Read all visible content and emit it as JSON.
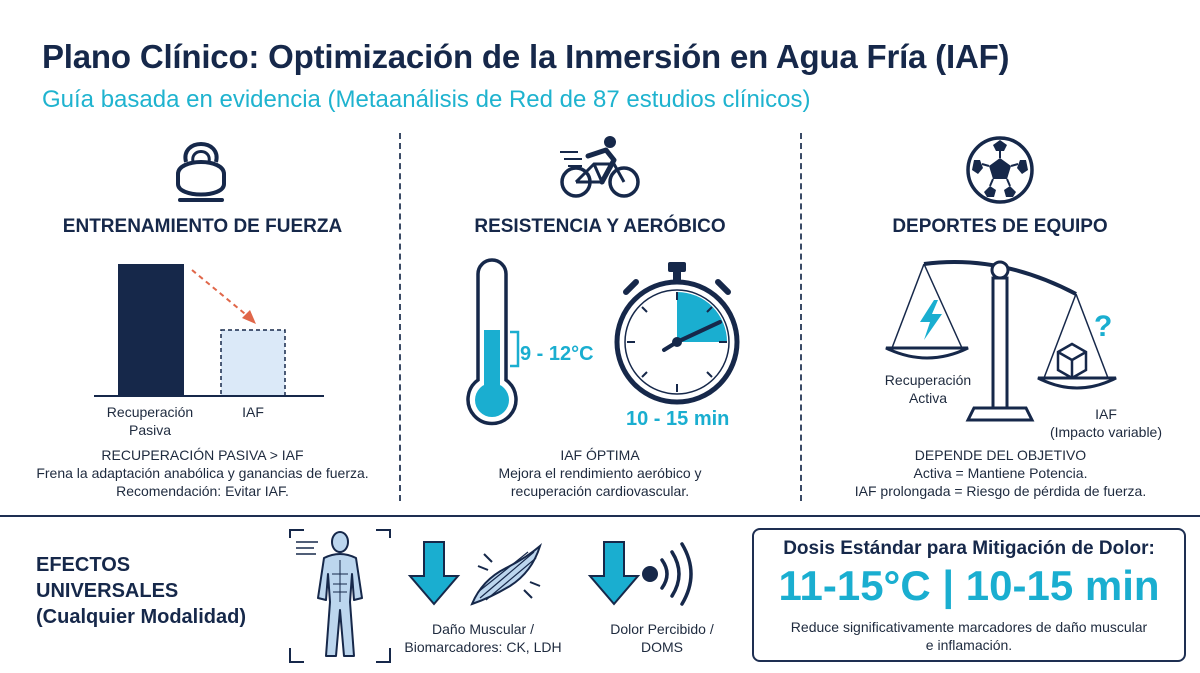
{
  "header": {
    "title": "Plano Clínico: Optimización de la Inmersión en Agua Fría (IAF)",
    "subtitle": "Guía basada en evidencia (Metaanálisis de Red de 87 estudios clínicos)"
  },
  "strength": {
    "icon": "kettlebell-icon",
    "heading": "ENTRENAMIENTO DE FUERZA",
    "bar_passive_label_1": "Recuperación",
    "bar_passive_label_2": "Pasiva",
    "bar_iaf_label": "IAF",
    "caption_1": "RECUPERACIÓN PASIVA > IAF",
    "caption_2": "Frena la adaptación anabólica y ganancias de fuerza.",
    "caption_3": "Recomendación: Evitar IAF."
  },
  "endurance": {
    "icon": "cyclist-icon",
    "heading": "RESISTENCIA Y AERÓBICO",
    "temp_label": "9 - 12°C",
    "time_label": "10 - 15 min",
    "caption_1": "IAF ÓPTIMA",
    "caption_2": "Mejora el rendimiento aeróbico y",
    "caption_3": "recuperación cardiovascular."
  },
  "team": {
    "icon": "soccer-ball-icon",
    "heading": "DEPORTES DE EQUIPO",
    "left_label_1": "Recuperación",
    "left_label_2": "Activa",
    "right_label_1": "IAF",
    "right_label_2": "(Impacto variable)",
    "question": "?",
    "caption_1": "DEPENDE DEL OBJETIVO",
    "caption_2": "Activa = Mantiene Potencia.",
    "caption_3": "IAF prolongada = Riesgo de pérdida de fuerza."
  },
  "universal": {
    "title_1": "EFECTOS",
    "title_2": "UNIVERSALES",
    "title_3": "(Cualquier Modalidad)",
    "muscle_label_1": "Daño Muscular /",
    "muscle_label_2": "Biomarcadores: CK, LDH",
    "pain_label_1": "Dolor Percibido /",
    "pain_label_2": "DOMS"
  },
  "dose": {
    "title": "Dosis Estándar para Mitigación de Dolor:",
    "value": "11-15°C | 10-15 min",
    "desc_1": "Reduce significativamente marcadores de daño muscular",
    "desc_2": "e inflamación."
  },
  "colors": {
    "navy": "#16284a",
    "teal": "#1aaed0",
    "light_blue": "#dbe9f8",
    "arrow_orange": "#e0674a"
  }
}
